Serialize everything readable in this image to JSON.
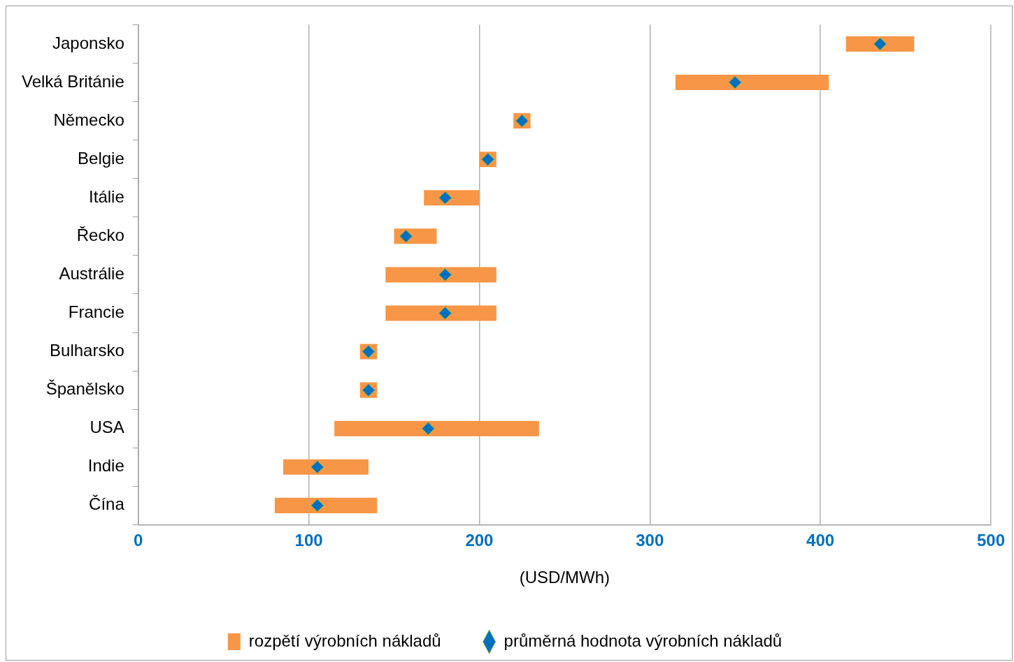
{
  "chart_data": {
    "type": "bar",
    "orientation": "horizontal",
    "xlabel": "(USD/MWh)",
    "categories": [
      "Japonsko",
      "Velká Británie",
      "Německo",
      "Belgie",
      "Itálie",
      "Řecko",
      "Austrálie",
      "Francie",
      "Bulharsko",
      "Španělsko",
      "USA",
      "Indie",
      "Čína"
    ],
    "series": [
      {
        "name": "rozpětí výrobních nákladů",
        "color": "#f79646",
        "base": [
          415,
          315,
          220,
          200,
          167.5,
          150,
          145,
          145,
          130,
          130,
          115,
          85,
          80
        ],
        "values": [
          40,
          90,
          10,
          10,
          32.5,
          25,
          65,
          65,
          10,
          10,
          120,
          50,
          60
        ]
      },
      {
        "name": "průměrná hodnota výrobních nákladů",
        "type": "scatter",
        "color": "#0070c0",
        "marker": "diamond",
        "values": [
          435,
          350,
          225,
          205,
          180,
          157,
          180,
          180,
          135,
          135,
          170,
          105,
          105
        ]
      }
    ],
    "xlim": [
      0,
      500
    ],
    "xticks": [
      0,
      100,
      200,
      300,
      400,
      500
    ],
    "grid": "x",
    "legend": "bottom"
  }
}
